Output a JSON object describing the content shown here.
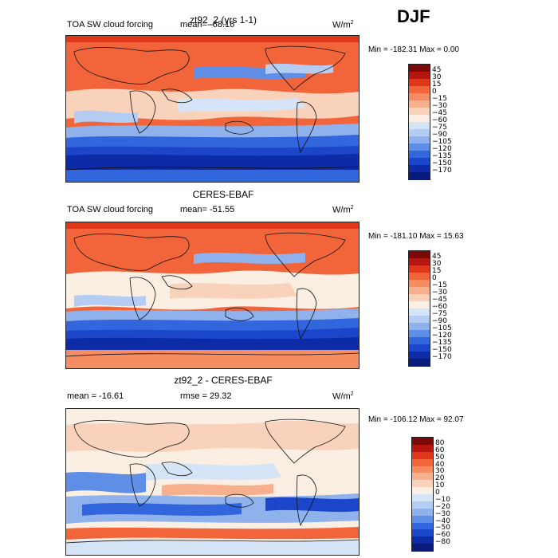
{
  "season": "DJF",
  "panels": [
    {
      "title": "zt92_2 (yrs 1-1)",
      "field_label": "TOA SW cloud forcing",
      "stat_label": "mean= -68.16",
      "units": "W/m",
      "units_sup": "2",
      "minmax": "Min = -182.31 Max =    0.00"
    },
    {
      "title": "CERES-EBAF",
      "field_label": "TOA SW cloud forcing",
      "stat_label": "mean= -51.55",
      "units": "W/m",
      "units_sup": "2",
      "minmax": "Min = -181.10 Max =  15.63"
    },
    {
      "title": "zt92_2 - CERES-EBAF",
      "field_label": "mean = -16.61",
      "stat_label": "rmse =  29.32",
      "units": "W/m",
      "units_sup": "2",
      "minmax": "Min = -106.12 Max =  92.07"
    }
  ],
  "colorbar_main": {
    "levels": [
      "45",
      "30",
      "15",
      "0",
      "−15",
      "−30",
      "−45",
      "−60",
      "−75",
      "−90",
      "−105",
      "−120",
      "−135",
      "−150",
      "−170"
    ],
    "colors": [
      "#7a0a0a",
      "#b5160f",
      "#e0371b",
      "#f2643a",
      "#f58c62",
      "#f7b08e",
      "#f9d2bb",
      "#fbeee2",
      "#d6e4f7",
      "#b5cdf2",
      "#8fb2ec",
      "#5f8ee6",
      "#3266dd",
      "#1b46c9",
      "#0d2ba6",
      "#081a7c"
    ]
  },
  "colorbar_diff": {
    "levels": [
      "80",
      "60",
      "50",
      "40",
      "30",
      "20",
      "10",
      "0",
      "−10",
      "−20",
      "−30",
      "−40",
      "−50",
      "−60",
      "−80"
    ],
    "colors": [
      "#7a0a0a",
      "#b5160f",
      "#e0371b",
      "#f2643a",
      "#f58c62",
      "#f7b08e",
      "#f9d2bb",
      "#fbeee2",
      "#d6e4f7",
      "#b5cdf2",
      "#8fb2ec",
      "#5f8ee6",
      "#3266dd",
      "#1b46c9",
      "#0d2ba6",
      "#081a7c"
    ]
  }
}
